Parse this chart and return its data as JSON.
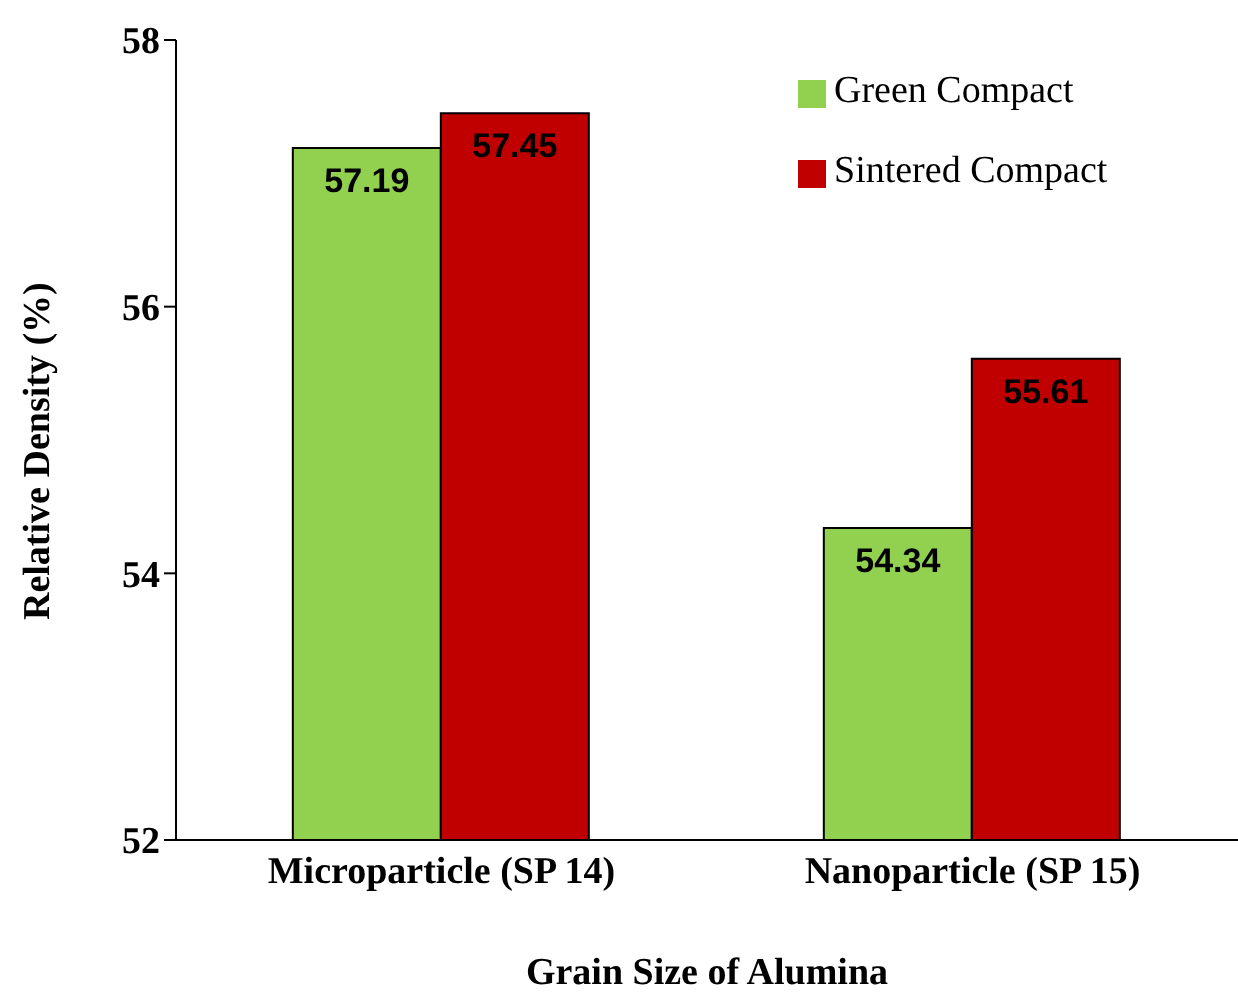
{
  "chart_data": {
    "type": "bar",
    "xlabel": "Grain Size of Alumina",
    "ylabel": "Relative Density (%)",
    "categories": [
      "Microparticle (SP 14)",
      "Nanoparticle (SP 15)"
    ],
    "series": [
      {
        "name": "Green Compact",
        "color": "#92d050",
        "values": [
          57.19,
          54.34
        ]
      },
      {
        "name": "Sintered Compact",
        "color": "#c00000",
        "values": [
          57.45,
          55.61
        ]
      }
    ],
    "ylim": [
      52,
      58
    ],
    "yticks": [
      52,
      54,
      56,
      58
    ],
    "grid": false,
    "legend": "top right",
    "data_labels": true
  }
}
